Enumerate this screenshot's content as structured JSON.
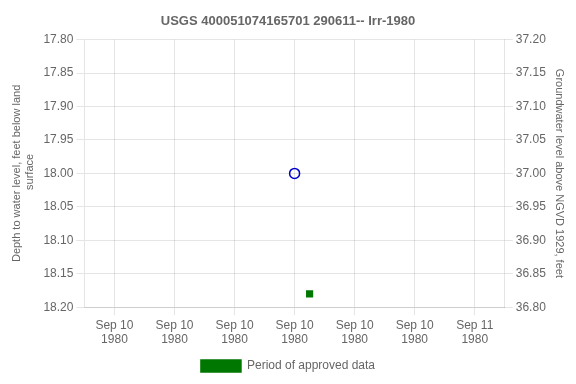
{
  "chart_data": {
    "type": "scatter",
    "title": "USGS 400051074165701 290611-- Irr-1980",
    "ylabel": "Depth to water level, feet below land\n surface",
    "y2label": "Groundwater level above NGVD 1929, feet",
    "xlim": [
      -2,
      26
    ],
    "xticks": [
      {
        "value": 0,
        "label": "Sep 10\n1980"
      },
      {
        "value": 4,
        "label": "Sep 10\n1980"
      },
      {
        "value": 8,
        "label": "Sep 10\n1980"
      },
      {
        "value": 12,
        "label": "Sep 10\n1980"
      },
      {
        "value": 16,
        "label": "Sep 10\n1980"
      },
      {
        "value": 20,
        "label": "Sep 10\n1980"
      },
      {
        "value": 24,
        "label": "Sep 11\n1980"
      }
    ],
    "ylim": [
      18.2,
      17.8
    ],
    "yticks": [
      {
        "value": 17.8,
        "label": "17.80"
      },
      {
        "value": 17.85,
        "label": "17.85"
      },
      {
        "value": 17.9,
        "label": "17.90"
      },
      {
        "value": 17.95,
        "label": "17.95"
      },
      {
        "value": 18.0,
        "label": "18.00"
      },
      {
        "value": 18.05,
        "label": "18.05"
      },
      {
        "value": 18.1,
        "label": "18.10"
      },
      {
        "value": 18.15,
        "label": "18.15"
      },
      {
        "value": 18.2,
        "label": "18.20"
      }
    ],
    "y2lim": [
      36.8,
      37.2
    ],
    "y2ticks": [
      {
        "value": 37.2,
        "label": "37.20"
      },
      {
        "value": 37.15,
        "label": "37.15"
      },
      {
        "value": 37.1,
        "label": "37.10"
      },
      {
        "value": 37.05,
        "label": "37.05"
      },
      {
        "value": 37.0,
        "label": "37.00"
      },
      {
        "value": 36.95,
        "label": "36.95"
      },
      {
        "value": 36.9,
        "label": "36.90"
      },
      {
        "value": 36.85,
        "label": "36.85"
      },
      {
        "value": 36.8,
        "label": "36.80"
      }
    ],
    "series": [
      {
        "x": [
          12
        ],
        "values": [
          18.0
        ],
        "color": "#0000cc",
        "marker": "open_circle"
      },
      {
        "name": "Period of approved data",
        "x": [
          13
        ],
        "values": [
          18.18
        ],
        "color": "#007700",
        "marker": "square"
      }
    ],
    "grid": true,
    "legend": "bottom"
  }
}
